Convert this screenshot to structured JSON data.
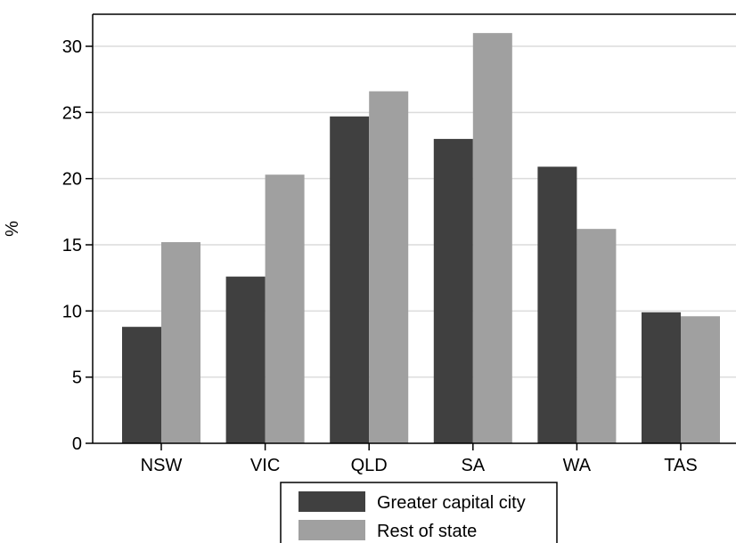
{
  "chart_data": {
    "type": "bar",
    "categories": [
      "NSW",
      "VIC",
      "QLD",
      "SA",
      "WA",
      "TAS"
    ],
    "series": [
      {
        "name": "Greater capital city",
        "color": "#404040",
        "values": [
          8.8,
          12.6,
          24.7,
          23.0,
          20.9,
          9.9
        ]
      },
      {
        "name": "Rest of state",
        "color": "#a0a0a0",
        "values": [
          15.2,
          20.3,
          26.6,
          31.0,
          16.2,
          9.6
        ]
      }
    ],
    "ylabel": "%",
    "xlabel": "",
    "ylim": [
      0,
      32.5
    ],
    "yticks": [
      0,
      5,
      10,
      15,
      20,
      25,
      30
    ],
    "grid": true,
    "legend_position": "bottom"
  }
}
